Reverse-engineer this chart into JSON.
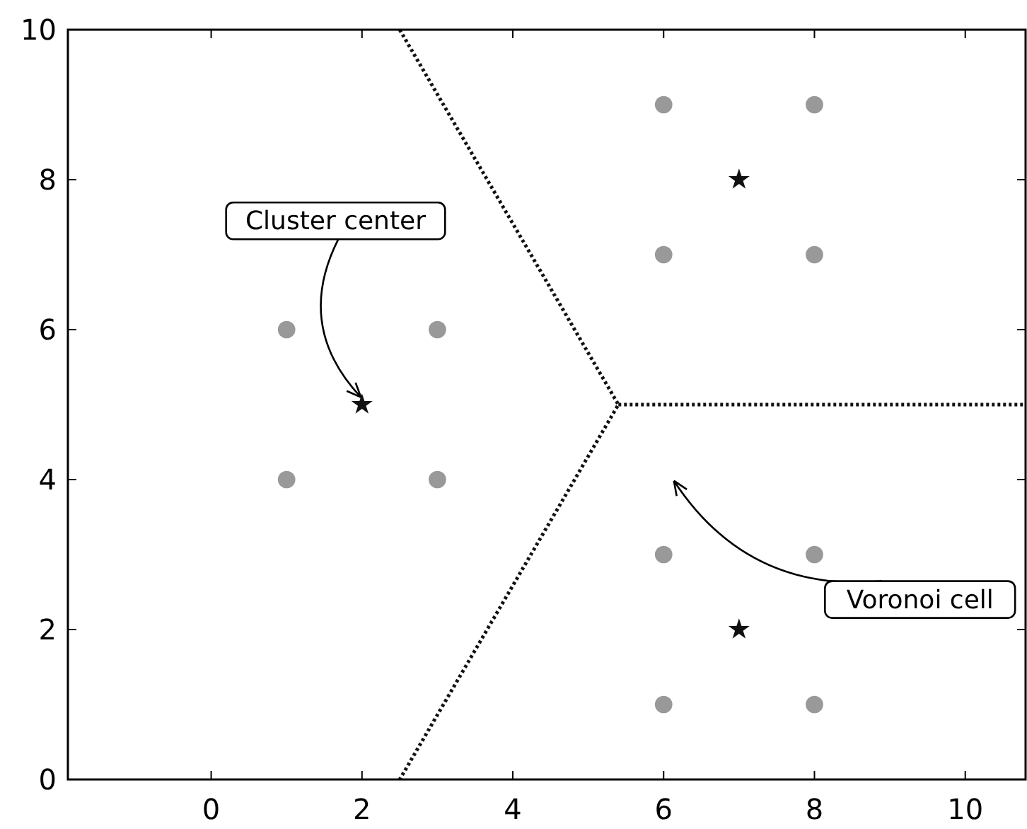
{
  "chart_data": {
    "type": "scatter",
    "xlim": [
      -1.9,
      10.8
    ],
    "ylim": [
      0,
      10
    ],
    "xticks": [
      0,
      2,
      4,
      6,
      8,
      10
    ],
    "yticks": [
      0,
      2,
      4,
      6,
      8,
      10
    ],
    "grid": false,
    "series": [
      {
        "color": "#999999",
        "marker": "circle",
        "x": [
          1,
          3,
          1,
          3,
          6,
          8,
          6,
          8,
          6,
          8,
          6,
          8
        ],
        "values": [
          6,
          6,
          4,
          4,
          9,
          9,
          7,
          7,
          3,
          3,
          1,
          1
        ]
      },
      {
        "color": "#111111",
        "marker": "star",
        "x": [
          2,
          7,
          7
        ],
        "values": [
          5,
          8,
          2
        ]
      },
      {
        "type": "line",
        "color": "#111111",
        "line_style": "dotted",
        "marker": "none",
        "x": [
          2.5,
          5.4,
          2.5
        ],
        "values": [
          10,
          5,
          0
        ]
      },
      {
        "type": "line",
        "color": "#111111",
        "line_style": "dotted",
        "marker": "none",
        "x": [
          5.4,
          10.8
        ],
        "values": [
          5,
          5
        ]
      }
    ],
    "annotations": [
      {
        "text": "Cluster center",
        "x": 2,
        "y": 5
      },
      "Voronoi cell"
    ]
  }
}
